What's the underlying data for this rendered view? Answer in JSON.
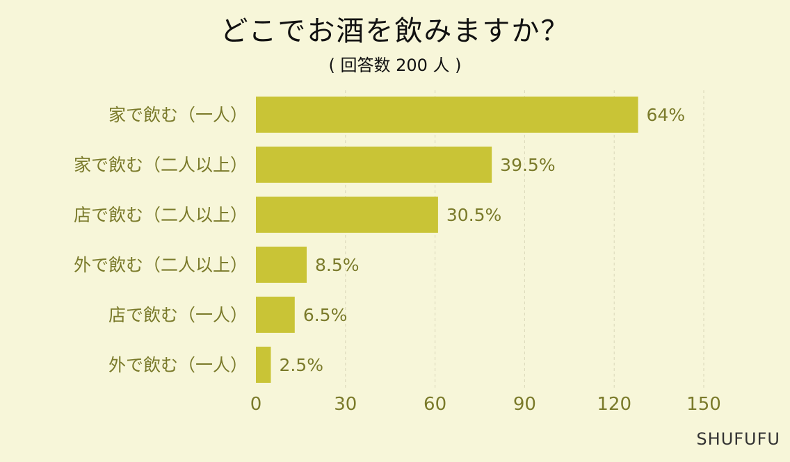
{
  "chart_data": {
    "type": "bar",
    "orientation": "horizontal",
    "title": "どこでお酒を飲みますか？",
    "subtitle": "( 回答数 200 人 )",
    "categories": [
      "家で飲む（一人）",
      "家で飲む（二人以上）",
      "店で飲む（二人以上）",
      "外で飲む（二人以上）",
      "店で飲む（一人）",
      "外で飲む（一人）"
    ],
    "values": [
      128,
      79,
      61,
      17,
      13,
      5
    ],
    "value_labels": [
      "64%",
      "39.5%",
      "30.5%",
      "8.5%",
      "6.5%",
      "2.5%"
    ],
    "xlim": [
      0,
      150
    ],
    "xticks": [
      0,
      30,
      60,
      90,
      120,
      150
    ],
    "xtick_labels": [
      "0",
      "30",
      "60",
      "90",
      "120",
      "150"
    ],
    "grid": true,
    "colors": {
      "bar": "#c9c436",
      "text": "#7a7a2a",
      "grid": "#d9d7b8",
      "background": "#f7f6d9"
    }
  },
  "footer": {
    "brand": "SHUFUFU"
  }
}
